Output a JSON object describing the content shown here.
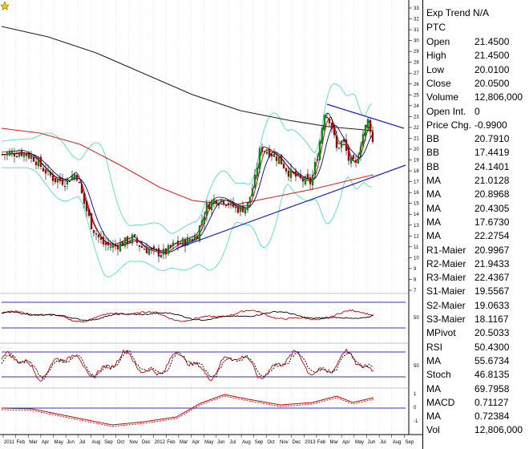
{
  "info_panel": {
    "title": "Exp Trend N/A",
    "symbol": "PTC",
    "rows": [
      {
        "label": "Open",
        "value": "21.4500"
      },
      {
        "label": "High",
        "value": "21.4500"
      },
      {
        "label": "Low",
        "value": "20.0100"
      },
      {
        "label": "Close",
        "value": "20.0500"
      },
      {
        "label": "Volume",
        "value": "12,806,000"
      },
      {
        "label": "Open Int.",
        "value": "0"
      },
      {
        "label": "Price Chg.",
        "value": "-0.9900"
      },
      {
        "label": "BB",
        "value": "20.7910"
      },
      {
        "label": "BB",
        "value": "17.4419"
      },
      {
        "label": "BB",
        "value": "24.1401"
      },
      {
        "label": "MA",
        "value": "21.0128"
      },
      {
        "label": "MA",
        "value": "20.8968"
      },
      {
        "label": "MA",
        "value": "20.4305"
      },
      {
        "label": "MA",
        "value": "17.6730"
      },
      {
        "label": "MA",
        "value": "22.2754"
      },
      {
        "label": "R1-Maier",
        "value": "20.9967"
      },
      {
        "label": "R2-Maier",
        "value": "21.9433"
      },
      {
        "label": "R3-Maier",
        "value": "22.4367"
      },
      {
        "label": "S1-Maier",
        "value": "19.5567"
      },
      {
        "label": "S2-Maier",
        "value": "19.0633"
      },
      {
        "label": "S3-Maier",
        "value": "18.1167"
      },
      {
        "label": "MPivot",
        "value": "20.5033"
      },
      {
        "label": "RSI",
        "value": "50.4300"
      },
      {
        "label": "MA",
        "value": "55.6734"
      },
      {
        "label": "Stoch",
        "value": "46.8135"
      },
      {
        "label": "MA",
        "value": "69.7958"
      },
      {
        "label": "MACD",
        "value": "0.71127"
      },
      {
        "label": "MA",
        "value": "0.72384"
      },
      {
        "label": "Vol",
        "value": "12,806,000"
      }
    ]
  },
  "price_axis": {
    "ticks": [
      "33",
      "32",
      "31",
      "30",
      "29",
      "28",
      "27",
      "26",
      "25",
      "24",
      "23",
      "22",
      "21",
      "20",
      "19",
      "18",
      "17",
      "16",
      "15",
      "14",
      "13",
      "12",
      "11",
      "10",
      "9",
      "8",
      "7"
    ]
  },
  "panel_axis": {
    "rsi_tick": "50",
    "stoch_tick": "50",
    "macd_ticks": [
      "1",
      "0",
      "-1"
    ]
  },
  "time_axis": {
    "labels": [
      "2011",
      "Feb",
      "Mar",
      "Apr",
      "May",
      "Jun",
      "Jul",
      "Aug",
      "Sep",
      "Oct",
      "Nov",
      "Dec",
      "2012",
      "Feb",
      "Mar",
      "Apr",
      "May",
      "Jun",
      "Jul",
      "Aug",
      "Sep",
      "Oct",
      "Nov",
      "Dec",
      "2013",
      "Feb",
      "Mar",
      "Apr",
      "May",
      "Jun",
      "Jul",
      "Aug",
      "Sep"
    ]
  },
  "colors": {
    "candle_up": "#00aa00",
    "candle_down": "#cc0000",
    "ma_fast": "#cc0000",
    "ma_mid": "#000080",
    "ma_long_black": "#222222",
    "ma_long_red": "#dd2222",
    "bollinger": "#66e0c0",
    "trendline": "#2020cc",
    "level_line": "#3030cc"
  },
  "icons": {
    "corner": "star-icon"
  }
}
